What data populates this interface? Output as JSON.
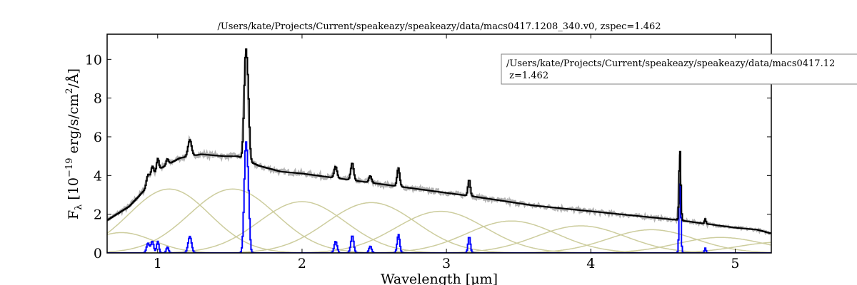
{
  "chart_data": {
    "type": "line",
    "title": "/Users/kate/Projects/Current/speakeazy/speakeazy/data/macs0417.1208_340.v0, zspec=1.462",
    "xlabel": "Wavelength [μm]",
    "ylabel_parts": {
      "main": "F",
      "sub": "λ",
      "bracket_open": " [10",
      "exp": "−19",
      "unit": " erg/s/cm",
      "exp2": "2",
      "tail": "/Å]"
    },
    "xlim": [
      0.65,
      5.25
    ],
    "ylim": [
      0,
      11.3
    ],
    "x_ticks": [
      1,
      2,
      3,
      4,
      5
    ],
    "y_ticks": [
      0,
      2,
      4,
      6,
      8,
      10
    ],
    "legend": {
      "position": "upper-right",
      "line1": "/Users/kate/Projects/Current/speakeazy/speakeazy/data/macs0417.12",
      "line2": " z=1.462"
    },
    "colors": {
      "model": "#000000",
      "observed": "#b3b3b3",
      "emission_lines": "#0000ff",
      "basis": "#cdcd9e"
    },
    "continuum_model": {
      "x": [
        0.65,
        0.8,
        0.9,
        1.0,
        1.15,
        1.3,
        1.45,
        1.55,
        1.7,
        1.85,
        2.0,
        2.2,
        2.5,
        2.8,
        3.2,
        3.6,
        4.0,
        4.4,
        4.6,
        4.8,
        5.0,
        5.15,
        5.25
      ],
      "y": [
        1.7,
        2.4,
        3.2,
        4.3,
        4.9,
        5.1,
        5.0,
        5.0,
        4.5,
        4.2,
        4.1,
        3.9,
        3.6,
        3.3,
        2.9,
        2.45,
        2.15,
        1.85,
        1.7,
        1.5,
        1.3,
        1.2,
        1.0
      ]
    },
    "emission_lines": [
      {
        "center": 0.93,
        "height": 0.5,
        "width": 0.01
      },
      {
        "center": 0.96,
        "height": 0.6,
        "width": 0.01
      },
      {
        "center": 0.998,
        "height": 0.6,
        "width": 0.008
      },
      {
        "center": 1.065,
        "height": 0.3,
        "width": 0.008
      },
      {
        "center": 1.22,
        "height": 0.85,
        "width": 0.012
      },
      {
        "center": 1.607,
        "height": 5.3,
        "width": 0.011
      },
      {
        "center": 1.625,
        "height": 2.5,
        "width": 0.009
      },
      {
        "center": 2.23,
        "height": 0.6,
        "width": 0.01
      },
      {
        "center": 2.345,
        "height": 0.9,
        "width": 0.01
      },
      {
        "center": 2.47,
        "height": 0.35,
        "width": 0.009
      },
      {
        "center": 2.665,
        "height": 0.95,
        "width": 0.009
      },
      {
        "center": 3.155,
        "height": 0.85,
        "width": 0.008
      },
      {
        "center": 4.615,
        "height": 3.6,
        "width": 0.006
      },
      {
        "center": 4.79,
        "height": 0.25,
        "width": 0.005
      }
    ],
    "basis_functions": [
      {
        "center": 0.75,
        "height": 1.05,
        "sigma": 0.22
      },
      {
        "center": 1.08,
        "height": 3.3,
        "sigma": 0.28
      },
      {
        "center": 1.52,
        "height": 3.3,
        "sigma": 0.3
      },
      {
        "center": 2.0,
        "height": 2.65,
        "sigma": 0.3
      },
      {
        "center": 2.48,
        "height": 2.6,
        "sigma": 0.31
      },
      {
        "center": 2.96,
        "height": 2.15,
        "sigma": 0.31
      },
      {
        "center": 3.45,
        "height": 1.65,
        "sigma": 0.31
      },
      {
        "center": 3.93,
        "height": 1.4,
        "sigma": 0.31
      },
      {
        "center": 4.42,
        "height": 1.2,
        "sigma": 0.3
      },
      {
        "center": 4.9,
        "height": 0.8,
        "sigma": 0.3
      },
      {
        "center": 5.3,
        "height": 0.55,
        "sigma": 0.28
      }
    ]
  }
}
